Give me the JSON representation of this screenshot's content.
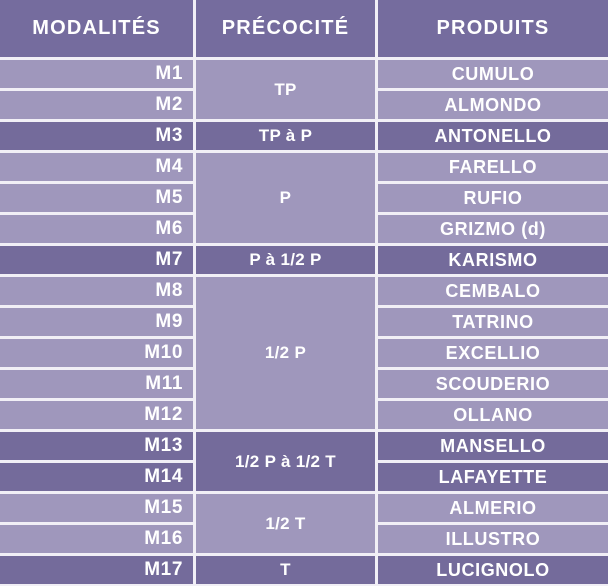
{
  "table": {
    "colors": {
      "header_bg": "#756c9e",
      "row_light": "#9f97bc",
      "row_dark": "#746b9b",
      "grid_line": "#f1eff6",
      "text": "#ffffff"
    },
    "columns": [
      {
        "key": "modalites",
        "label": "MODALITÉS"
      },
      {
        "key": "precocite",
        "label": "PRÉCOCITÉ"
      },
      {
        "key": "produits",
        "label": "PRODUITS"
      }
    ],
    "groups": [
      {
        "precocite": "TP",
        "shade": "light",
        "rows": [
          {
            "modalite": "M1",
            "produit": "CUMULO"
          },
          {
            "modalite": "M2",
            "produit": "ALMONDO"
          }
        ]
      },
      {
        "precocite": "TP à P",
        "shade": "dark",
        "rows": [
          {
            "modalite": "M3",
            "produit": "ANTONELLO"
          }
        ]
      },
      {
        "precocite": "P",
        "shade": "light",
        "rows": [
          {
            "modalite": "M4",
            "produit": "FARELLO"
          },
          {
            "modalite": "M5",
            "produit": "RUFIO"
          },
          {
            "modalite": "M6",
            "produit": "GRIZMO (d)"
          }
        ]
      },
      {
        "precocite": "P à 1/2 P",
        "shade": "dark",
        "rows": [
          {
            "modalite": "M7",
            "produit": "KARISMO"
          }
        ]
      },
      {
        "precocite": "1/2 P",
        "shade": "light",
        "rows": [
          {
            "modalite": "M8",
            "produit": "CEMBALO"
          },
          {
            "modalite": "M9",
            "produit": "TATRINO"
          },
          {
            "modalite": "M10",
            "produit": "EXCELLIO"
          },
          {
            "modalite": "M11",
            "produit": "SCOUDERIO"
          },
          {
            "modalite": "M12",
            "produit": "OLLANO"
          }
        ]
      },
      {
        "precocite": "1/2 P à 1/2 T",
        "shade": "dark",
        "rows": [
          {
            "modalite": "M13",
            "produit": "MANSELLO"
          },
          {
            "modalite": "M14",
            "produit": "LAFAYETTE"
          }
        ]
      },
      {
        "precocite": "1/2 T",
        "shade": "light",
        "rows": [
          {
            "modalite": "M15",
            "produit": "ALMERIO"
          },
          {
            "modalite": "M16",
            "produit": "ILLUSTRO"
          }
        ]
      },
      {
        "precocite": "T",
        "shade": "dark",
        "rows": [
          {
            "modalite": "M17",
            "produit": "LUCIGNOLO"
          }
        ]
      }
    ]
  }
}
